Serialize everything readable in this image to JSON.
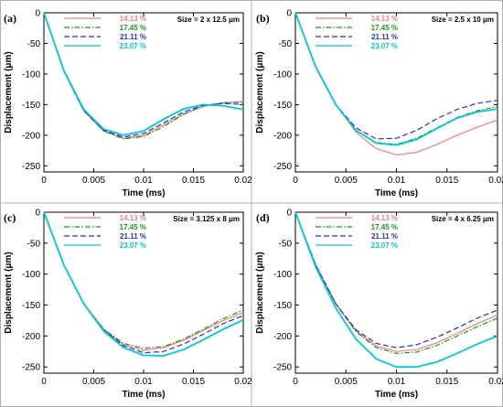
{
  "chart_data": [
    {
      "type": "line",
      "panel_label": "(a)",
      "size_text": "Size = 2 x 12.5 μm",
      "xlabel": "Time (ms)",
      "ylabel": "Displacement (μm)",
      "xlim": [
        0,
        0.02
      ],
      "ylim": [
        -260,
        0
      ],
      "xticks": [
        "0",
        "0.005",
        "0.01",
        "0.015",
        "0.02"
      ],
      "yticks": [
        "0",
        "-50",
        "-100",
        "-150",
        "-200",
        "-250"
      ],
      "legend_position": "top-center",
      "series": [
        {
          "name": "14.13 %",
          "color": "#f08080",
          "dash": "solid",
          "x": [
            0,
            0.002,
            0.004,
            0.006,
            0.008,
            0.01,
            0.012,
            0.014,
            0.016,
            0.018,
            0.02
          ],
          "y": [
            0,
            -95,
            -160,
            -193,
            -205,
            -200,
            -183,
            -165,
            -153,
            -147,
            -145
          ]
        },
        {
          "name": "17.45 %",
          "color": "#1a9a1a",
          "dash": "dashdot",
          "x": [
            0,
            0.002,
            0.004,
            0.006,
            0.008,
            0.01,
            0.012,
            0.014,
            0.016,
            0.018,
            0.02
          ],
          "y": [
            0,
            -95,
            -160,
            -193,
            -206,
            -202,
            -186,
            -166,
            -152,
            -147,
            -146
          ]
        },
        {
          "name": "21.11 %",
          "color": "#2b2bd6",
          "dash": "dashed",
          "x": [
            0,
            0.002,
            0.004,
            0.006,
            0.008,
            0.01,
            0.012,
            0.014,
            0.016,
            0.018,
            0.02
          ],
          "y": [
            0,
            -95,
            -160,
            -192,
            -203,
            -197,
            -180,
            -162,
            -151,
            -148,
            -150
          ]
        },
        {
          "name": "23.07 %",
          "color": "#00c8d7",
          "dash": "solid",
          "x": [
            0,
            0.002,
            0.004,
            0.006,
            0.008,
            0.01,
            0.012,
            0.014,
            0.016,
            0.018,
            0.02
          ],
          "y": [
            0,
            -94,
            -158,
            -190,
            -200,
            -193,
            -174,
            -157,
            -150,
            -152,
            -158
          ]
        }
      ]
    },
    {
      "type": "line",
      "panel_label": "(b)",
      "size_text": "Size = 2.5 x 10 μm",
      "xlabel": "Time (ms)",
      "ylabel": "Displacement (μm)",
      "xlim": [
        0,
        0.02
      ],
      "ylim": [
        -260,
        0
      ],
      "xticks": [
        "0",
        "0.005",
        "0.01",
        "0.015",
        "0.02"
      ],
      "yticks": [
        "0",
        "-50",
        "-100",
        "-150",
        "-200",
        "-250"
      ],
      "legend_position": "top-center",
      "series": [
        {
          "name": "14.13 %",
          "color": "#f08080",
          "dash": "solid",
          "x": [
            0,
            0.002,
            0.004,
            0.006,
            0.008,
            0.01,
            0.012,
            0.014,
            0.016,
            0.018,
            0.02
          ],
          "y": [
            0,
            -88,
            -150,
            -195,
            -222,
            -232,
            -228,
            -215,
            -200,
            -187,
            -175
          ]
        },
        {
          "name": "17.45 %",
          "color": "#1a9a1a",
          "dash": "dashdot",
          "x": [
            0,
            0.002,
            0.004,
            0.006,
            0.008,
            0.01,
            0.012,
            0.014,
            0.016,
            0.018,
            0.02
          ],
          "y": [
            0,
            -88,
            -150,
            -192,
            -212,
            -215,
            -205,
            -188,
            -171,
            -160,
            -153
          ]
        },
        {
          "name": "21.11 %",
          "color": "#2b2bd6",
          "dash": "dashed",
          "x": [
            0,
            0.002,
            0.004,
            0.006,
            0.008,
            0.01,
            0.012,
            0.014,
            0.016,
            0.018,
            0.02
          ],
          "y": [
            0,
            -88,
            -150,
            -188,
            -206,
            -205,
            -192,
            -173,
            -158,
            -148,
            -143
          ]
        },
        {
          "name": "23.07 %",
          "color": "#00c8d7",
          "dash": "solid",
          "x": [
            0,
            0.002,
            0.004,
            0.006,
            0.008,
            0.01,
            0.012,
            0.014,
            0.016,
            0.018,
            0.02
          ],
          "y": [
            0,
            -88,
            -150,
            -192,
            -213,
            -216,
            -207,
            -189,
            -172,
            -162,
            -157
          ]
        }
      ]
    },
    {
      "type": "line",
      "panel_label": "(c)",
      "size_text": "Size = 3.125 x 8 μm",
      "xlabel": "Time (ms)",
      "ylabel": "Displacement (μm)",
      "xlim": [
        0,
        0.02
      ],
      "ylim": [
        -260,
        0
      ],
      "xticks": [
        "0",
        "0.005",
        "0.01",
        "0.015",
        "0.02"
      ],
      "yticks": [
        "0",
        "-50",
        "-100",
        "-150",
        "-200",
        "-250"
      ],
      "legend_position": "top-center",
      "series": [
        {
          "name": "14.13 %",
          "color": "#f08080",
          "dash": "solid",
          "x": [
            0,
            0.002,
            0.004,
            0.006,
            0.008,
            0.01,
            0.012,
            0.014,
            0.016,
            0.018,
            0.02
          ],
          "y": [
            0,
            -85,
            -148,
            -190,
            -214,
            -223,
            -219,
            -207,
            -191,
            -175,
            -162
          ]
        },
        {
          "name": "17.45 %",
          "color": "#1a9a1a",
          "dash": "dashdot",
          "x": [
            0,
            0.002,
            0.004,
            0.006,
            0.008,
            0.01,
            0.012,
            0.014,
            0.016,
            0.018,
            0.02
          ],
          "y": [
            0,
            -85,
            -148,
            -189,
            -212,
            -220,
            -217,
            -205,
            -189,
            -172,
            -158
          ]
        },
        {
          "name": "21.11 %",
          "color": "#2b2bd6",
          "dash": "dashed",
          "x": [
            0,
            0.002,
            0.004,
            0.006,
            0.008,
            0.01,
            0.012,
            0.014,
            0.016,
            0.018,
            0.02
          ],
          "y": [
            0,
            -85,
            -148,
            -190,
            -216,
            -227,
            -225,
            -213,
            -197,
            -180,
            -167
          ]
        },
        {
          "name": "23.07 %",
          "color": "#00c8d7",
          "dash": "solid",
          "x": [
            0,
            0.002,
            0.004,
            0.006,
            0.008,
            0.01,
            0.012,
            0.014,
            0.016,
            0.018,
            0.02
          ],
          "y": [
            0,
            -85,
            -148,
            -192,
            -219,
            -231,
            -232,
            -222,
            -206,
            -189,
            -174
          ]
        }
      ]
    },
    {
      "type": "line",
      "panel_label": "(d)",
      "size_text": "Size = 4 x 6.25 μm",
      "xlabel": "Time (ms)",
      "ylabel": "Displacement (μm)",
      "xlim": [
        0,
        0.02
      ],
      "ylim": [
        -260,
        0
      ],
      "xticks": [
        "0",
        "0.005",
        "0.01",
        "0.015",
        "0.02"
      ],
      "yticks": [
        "0",
        "-50",
        "-100",
        "-150",
        "-200",
        "-250"
      ],
      "legend_position": "top-center",
      "series": [
        {
          "name": "14.13 %",
          "color": "#f08080",
          "dash": "solid",
          "x": [
            0,
            0.002,
            0.004,
            0.006,
            0.008,
            0.01,
            0.012,
            0.014,
            0.016,
            0.018,
            0.02
          ],
          "y": [
            0,
            -85,
            -148,
            -192,
            -216,
            -225,
            -222,
            -211,
            -196,
            -180,
            -166
          ]
        },
        {
          "name": "17.45 %",
          "color": "#1a9a1a",
          "dash": "dashdot",
          "x": [
            0,
            0.002,
            0.004,
            0.006,
            0.008,
            0.01,
            0.012,
            0.014,
            0.016,
            0.018,
            0.02
          ],
          "y": [
            0,
            -85,
            -148,
            -193,
            -219,
            -228,
            -226,
            -215,
            -200,
            -185,
            -171
          ]
        },
        {
          "name": "21.11 %",
          "color": "#2b2bd6",
          "dash": "dashed",
          "x": [
            0,
            0.002,
            0.004,
            0.006,
            0.008,
            0.01,
            0.012,
            0.014,
            0.016,
            0.018,
            0.02
          ],
          "y": [
            0,
            -85,
            -148,
            -190,
            -212,
            -219,
            -214,
            -202,
            -187,
            -171,
            -158
          ]
        },
        {
          "name": "23.07 %",
          "color": "#00c8d7",
          "dash": "solid",
          "x": [
            0,
            0.002,
            0.004,
            0.006,
            0.008,
            0.01,
            0.012,
            0.014,
            0.016,
            0.018,
            0.02
          ],
          "y": [
            0,
            -88,
            -155,
            -205,
            -237,
            -250,
            -250,
            -242,
            -228,
            -213,
            -200
          ]
        }
      ]
    }
  ]
}
